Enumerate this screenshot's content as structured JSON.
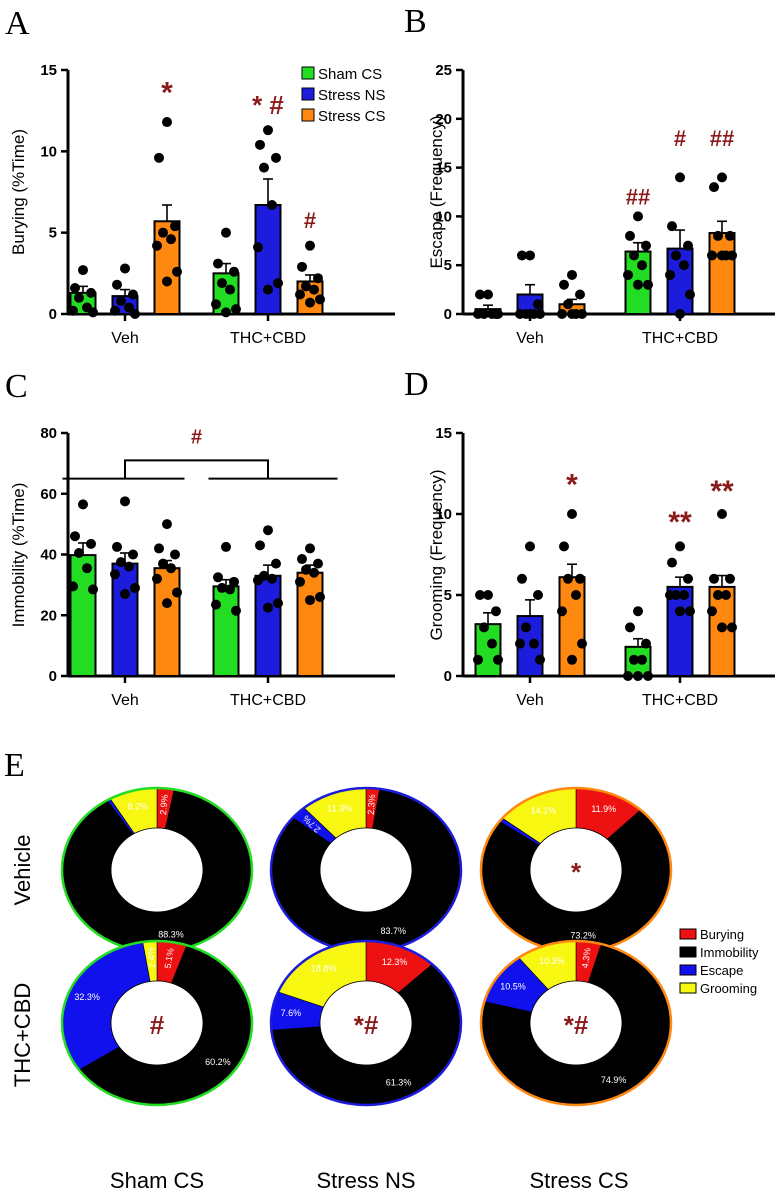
{
  "colors": {
    "sham_cs": "#22dd22",
    "stress_ns": "#1c1cdd",
    "stress_cs": "#ff8811",
    "sig": "#8b1a1a",
    "burying": "#ee1111",
    "immobility": "#000000",
    "escape": "#1111ee",
    "grooming": "#f7f711"
  },
  "legend": [
    "Sham CS",
    "Stress NS",
    "Stress CS"
  ],
  "chart_data": [
    {
      "panel": "A",
      "type": "bar",
      "ylabel": "Burying (%Time)",
      "ylim": [
        0,
        15
      ],
      "yticks": [
        0,
        5,
        10,
        15
      ],
      "groups": [
        "Veh",
        "THC+CBD"
      ],
      "series": [
        {
          "name": "Sham CS",
          "values": [
            1.3,
            2.5
          ],
          "sem": [
            0.4,
            0.6
          ],
          "points": [
            [
              2.7,
              1.6,
              1.3,
              1.0,
              0.4,
              0.2,
              0.1
            ],
            [
              5.0,
              3.1,
              2.6,
              1.9,
              1.5,
              0.6,
              0.3,
              0.1
            ]
          ]
        },
        {
          "name": "Stress NS",
          "values": [
            1.1,
            6.7
          ],
          "sem": [
            0.4,
            1.6
          ],
          "points": [
            [
              2.8,
              1.8,
              1.2,
              0.8,
              0.4,
              0.2,
              0.0
            ],
            [
              11.3,
              10.4,
              9.6,
              9.0,
              6.7,
              4.1,
              1.9,
              1.5
            ]
          ]
        },
        {
          "name": "Stress CS",
          "values": [
            5.7,
            2.0
          ],
          "sem": [
            1.0,
            0.4
          ],
          "points": [
            [
              11.8,
              9.6,
              5.4,
              5.0,
              4.6,
              4.2,
              2.6,
              2.0
            ],
            [
              4.2,
              2.9,
              2.2,
              1.7,
              1.5,
              1.2,
              0.9,
              0.7
            ]
          ]
        }
      ],
      "annotations": [
        {
          "text": "*",
          "group": 0,
          "series": 2,
          "y": 13.0,
          "size": 30
        },
        {
          "text": "* #",
          "group": 1,
          "series": 1,
          "y": 12.3,
          "size": 26
        },
        {
          "text": "#",
          "group": 1,
          "series": 2,
          "y": 5.3,
          "size": 22
        }
      ]
    },
    {
      "panel": "B",
      "type": "bar",
      "ylabel": "Escape (Frequency)",
      "ylim": [
        0,
        25
      ],
      "yticks": [
        0,
        5,
        10,
        15,
        20,
        25
      ],
      "groups": [
        "Veh",
        "THC+CBD"
      ],
      "series": [
        {
          "name": "Sham CS",
          "values": [
            0.5,
            6.4
          ],
          "sem": [
            0.4,
            0.9
          ],
          "points": [
            [
              2,
              2,
              0,
              0,
              0,
              0,
              0
            ],
            [
              10,
              8,
              7,
              6,
              5,
              4,
              3,
              3
            ]
          ]
        },
        {
          "name": "Stress NS",
          "values": [
            2.0,
            6.7
          ],
          "sem": [
            1.0,
            1.9
          ],
          "points": [
            [
              6,
              6,
              1,
              0,
              0,
              0,
              0,
              0
            ],
            [
              14,
              9,
              7,
              6,
              5,
              4,
              2,
              0
            ]
          ]
        },
        {
          "name": "Stress CS",
          "values": [
            1.0,
            8.3
          ],
          "sem": [
            0.5,
            1.2
          ],
          "points": [
            [
              4,
              3,
              2,
              1,
              0,
              0,
              0,
              0
            ],
            [
              14,
              13,
              8,
              8,
              6,
              6,
              6,
              6
            ]
          ]
        }
      ],
      "annotations": [
        {
          "text": "##",
          "group": 1,
          "series": 0,
          "y": 11.2,
          "size": 22
        },
        {
          "text": "#",
          "group": 1,
          "series": 1,
          "y": 17.2,
          "size": 22
        },
        {
          "text": "##",
          "group": 1,
          "series": 2,
          "y": 17.2,
          "size": 22
        }
      ]
    },
    {
      "panel": "C",
      "type": "bar",
      "ylabel": "Immobility (%Time)",
      "ylim": [
        0,
        80
      ],
      "yticks": [
        0,
        20,
        40,
        60,
        80
      ],
      "groups": [
        "Veh",
        "THC+CBD"
      ],
      "series": [
        {
          "name": "Sham CS",
          "values": [
            39.8,
            29.5
          ],
          "sem": [
            4.0,
            2.2
          ],
          "points": [
            [
              56.5,
              46.0,
              43.5,
              40.5,
              35.5,
              29.5,
              28.5
            ],
            [
              42.5,
              32.5,
              31.0,
              29.0,
              28.5,
              23.5,
              21.5
            ]
          ]
        },
        {
          "name": "Stress NS",
          "values": [
            37.0,
            33.0
          ],
          "sem": [
            3.5,
            3.5
          ],
          "points": [
            [
              57.5,
              42.5,
              40.0,
              37.5,
              36.0,
              33.5,
              29.0,
              27.0
            ],
            [
              48.0,
              43.0,
              37.0,
              33.0,
              32.0,
              31.5,
              24.0,
              22.5
            ]
          ]
        },
        {
          "name": "Stress CS",
          "values": [
            35.5,
            34.0
          ],
          "sem": [
            2.5,
            2.5
          ],
          "points": [
            [
              50.0,
              42.0,
              40.0,
              37.0,
              35.5,
              32.0,
              27.5,
              24.0
            ],
            [
              42.0,
              38.5,
              37.0,
              35.0,
              34.0,
              31.0,
              26.0,
              25.0
            ]
          ]
        }
      ],
      "annotations": [
        {
          "text": "#",
          "xmid": true,
          "y": 76.5,
          "size": 20
        }
      ],
      "bracket": {
        "y_top": 71.0,
        "y_low": 65.0
      }
    },
    {
      "panel": "D",
      "type": "bar",
      "ylabel": "Grooming (Frequency)",
      "ylim": [
        0,
        15
      ],
      "yticks": [
        0,
        5,
        10,
        15
      ],
      "groups": [
        "Veh",
        "THC+CBD"
      ],
      "series": [
        {
          "name": "Sham CS",
          "values": [
            3.2,
            1.8
          ],
          "sem": [
            0.7,
            0.5
          ],
          "points": [
            [
              5,
              5,
              4,
              3,
              2,
              1,
              1
            ],
            [
              4,
              3,
              2,
              1,
              1,
              0,
              0,
              0
            ]
          ]
        },
        {
          "name": "Stress NS",
          "values": [
            3.7,
            5.5
          ],
          "sem": [
            1.0,
            0.6
          ],
          "points": [
            [
              8,
              6,
              5,
              3,
              2,
              2,
              1
            ],
            [
              8,
              7,
              6,
              5,
              5,
              5,
              4,
              4
            ]
          ]
        },
        {
          "name": "Stress CS",
          "values": [
            6.1,
            5.5
          ],
          "sem": [
            0.8,
            0.7
          ],
          "points": [
            [
              10,
              8,
              6,
              6,
              5,
              4,
              2,
              1
            ],
            [
              10,
              6,
              6,
              5,
              5,
              4,
              3,
              3
            ]
          ]
        }
      ],
      "annotations": [
        {
          "text": "*",
          "group": 0,
          "series": 2,
          "y": 11.2,
          "size": 30
        },
        {
          "text": "**",
          "group": 1,
          "series": 1,
          "y": 8.9,
          "size": 30
        },
        {
          "text": "**",
          "group": 1,
          "series": 2,
          "y": 10.8,
          "size": 30
        }
      ]
    },
    {
      "panel": "E",
      "type": "pie",
      "categories": [
        "Burying",
        "Immobility",
        "Escape",
        "Grooming"
      ],
      "rows": [
        "Vehicle",
        "THC+CBD"
      ],
      "columns": [
        "Sham CS",
        "Stress NS",
        "Stress CS"
      ],
      "donuts": [
        {
          "row": 0,
          "col": 0,
          "values": [
            2.9,
            88.3,
            0.6,
            8.2
          ],
          "labels": [
            "2.9%",
            "88.3%",
            "",
            "8.2%"
          ],
          "mark": ""
        },
        {
          "row": 0,
          "col": 1,
          "values": [
            2.3,
            83.7,
            2.7,
            11.3
          ],
          "labels": [
            "2.3%",
            "83.7%",
            "2.7%",
            "11.3%"
          ],
          "mark": ""
        },
        {
          "row": 0,
          "col": 2,
          "values": [
            11.9,
            73.2,
            0.8,
            14.1
          ],
          "labels": [
            "11.9%",
            "73.2%",
            "",
            "14.1%"
          ],
          "mark": "*"
        },
        {
          "row": 1,
          "col": 0,
          "values": [
            5.1,
            60.2,
            32.3,
            2.4
          ],
          "labels": [
            "5.1%",
            "60.2%",
            "32.3%",
            "2.4%"
          ],
          "mark": "#"
        },
        {
          "row": 1,
          "col": 1,
          "values": [
            12.3,
            61.3,
            7.6,
            18.8
          ],
          "labels": [
            "12.3%",
            "61.3%",
            "7.6%",
            "18.8%"
          ],
          "mark": "*#"
        },
        {
          "row": 1,
          "col": 2,
          "values": [
            4.3,
            74.9,
            10.5,
            10.3
          ],
          "labels": [
            "4.3%",
            "74.9%",
            "10.5%",
            "10.3%"
          ],
          "mark": "*#"
        }
      ]
    }
  ]
}
